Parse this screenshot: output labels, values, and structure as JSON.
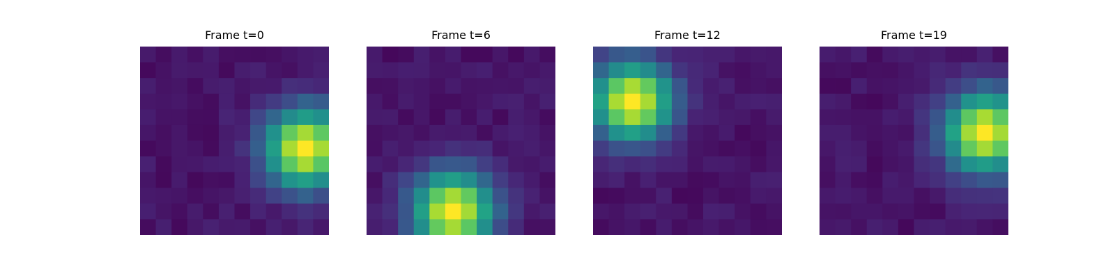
{
  "chart_data": [
    {
      "type": "heatmap",
      "title": "Frame t=0",
      "grid": false,
      "colormap": "viridis",
      "value_range": [
        0,
        1
      ],
      "shape": [
        12,
        12
      ],
      "peak": [
        6,
        10
      ],
      "sigma": 1.8,
      "noise": [
        0.02,
        0.09
      ]
    },
    {
      "type": "heatmap",
      "title": "Frame t=6",
      "grid": false,
      "colormap": "viridis",
      "value_range": [
        0,
        1
      ],
      "shape": [
        12,
        12
      ],
      "peak": [
        10,
        5
      ],
      "sigma": 1.8,
      "noise": [
        0.02,
        0.09
      ]
    },
    {
      "type": "heatmap",
      "title": "Frame t=12",
      "grid": false,
      "colormap": "viridis",
      "value_range": [
        0,
        1
      ],
      "shape": [
        12,
        12
      ],
      "peak": [
        3,
        2
      ],
      "sigma": 1.8,
      "noise": [
        0.02,
        0.09
      ]
    },
    {
      "type": "heatmap",
      "title": "Frame t=19",
      "grid": false,
      "colormap": "viridis",
      "value_range": [
        0,
        1
      ],
      "shape": [
        12,
        12
      ],
      "peak": [
        5,
        10
      ],
      "sigma": 1.8,
      "noise": [
        0.02,
        0.09
      ]
    }
  ]
}
